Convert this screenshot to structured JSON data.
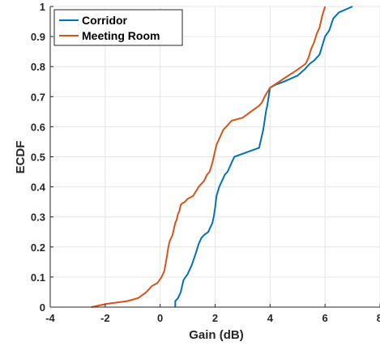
{
  "chart_data": {
    "type": "line",
    "title": "",
    "xlabel": "Gain (dB)",
    "ylabel": "ECDF",
    "xlim": [
      -4,
      8
    ],
    "ylim": [
      0,
      1
    ],
    "xticks": [
      -4,
      -2,
      0,
      2,
      4,
      6,
      8
    ],
    "yticks": [
      0,
      0.1,
      0.2,
      0.3,
      0.4,
      0.5,
      0.6,
      0.7,
      0.8,
      0.9,
      1
    ],
    "grid": true,
    "legend": "top-left",
    "series": [
      {
        "name": "Corridor",
        "color": "#0072BD",
        "x": [
          0.55,
          0.55,
          0.65,
          0.75,
          0.85,
          1.0,
          1.15,
          1.3,
          1.4,
          1.5,
          1.6,
          1.75,
          1.9,
          1.95,
          2.0,
          2.05,
          2.15,
          2.25,
          2.35,
          2.45,
          2.55,
          2.6,
          2.7,
          3.0,
          3.3,
          3.6,
          3.75,
          3.8,
          3.85,
          3.9,
          3.95,
          4.0,
          4.2,
          4.5,
          5.0,
          5.25,
          5.45,
          5.6,
          5.8,
          5.9,
          6.0,
          6.15,
          6.3,
          6.5,
          7.0
        ],
        "y": [
          0.0,
          0.02,
          0.03,
          0.05,
          0.09,
          0.11,
          0.14,
          0.18,
          0.21,
          0.23,
          0.24,
          0.25,
          0.28,
          0.3,
          0.33,
          0.37,
          0.4,
          0.42,
          0.44,
          0.45,
          0.47,
          0.48,
          0.5,
          0.51,
          0.52,
          0.53,
          0.59,
          0.62,
          0.65,
          0.67,
          0.7,
          0.73,
          0.74,
          0.75,
          0.77,
          0.79,
          0.81,
          0.82,
          0.84,
          0.87,
          0.9,
          0.92,
          0.96,
          0.98,
          1.0
        ]
      },
      {
        "name": "Meeting Room",
        "color": "#D95319",
        "x": [
          -2.5,
          -2.0,
          -1.2,
          -0.8,
          -0.5,
          -0.3,
          -0.1,
          0.05,
          0.15,
          0.25,
          0.3,
          0.35,
          0.45,
          0.5,
          0.55,
          0.6,
          0.65,
          0.7,
          0.75,
          0.8,
          0.9,
          1.0,
          1.2,
          1.4,
          1.5,
          1.6,
          1.7,
          1.8,
          1.9,
          2.0,
          2.05,
          2.1,
          2.15,
          2.2,
          2.3,
          2.4,
          2.5,
          2.6,
          3.0,
          3.3,
          3.6,
          3.7,
          3.8,
          4.0,
          4.5,
          5.0,
          5.3,
          5.4,
          5.5,
          5.6,
          5.7,
          5.8,
          5.9,
          6.0
        ],
        "y": [
          0.0,
          0.01,
          0.02,
          0.03,
          0.05,
          0.07,
          0.08,
          0.1,
          0.12,
          0.17,
          0.2,
          0.22,
          0.24,
          0.26,
          0.28,
          0.29,
          0.31,
          0.32,
          0.34,
          0.345,
          0.35,
          0.36,
          0.37,
          0.4,
          0.41,
          0.42,
          0.44,
          0.45,
          0.48,
          0.52,
          0.54,
          0.55,
          0.56,
          0.57,
          0.59,
          0.6,
          0.61,
          0.62,
          0.63,
          0.65,
          0.67,
          0.68,
          0.7,
          0.73,
          0.76,
          0.79,
          0.81,
          0.83,
          0.86,
          0.88,
          0.91,
          0.93,
          0.97,
          1.0
        ]
      }
    ]
  }
}
